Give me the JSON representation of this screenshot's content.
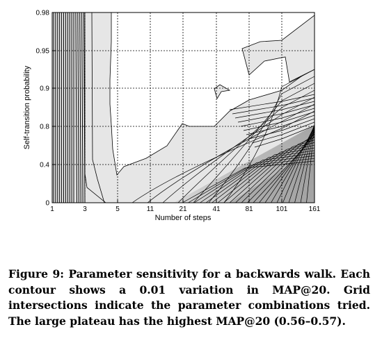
{
  "chart_data": {
    "type": "contour",
    "xlabel": "Number of steps",
    "ylabel": "Self-transition probability",
    "x_ticks": [
      "1",
      "3",
      "5",
      "11",
      "21",
      "41",
      "81",
      "101",
      "161"
    ],
    "y_ticks": [
      "0",
      "0.4",
      "0.8",
      "0.9",
      "0.95",
      "0.98"
    ],
    "grid": true,
    "colors": {
      "plateau": "#ffffff",
      "light": "#e6e6e6",
      "medium": "#b4b4b4",
      "dark": "#7a7a7a",
      "line": "#000000",
      "grid": "#000000"
    }
  },
  "caption": {
    "label": "Figure 9:",
    "text": "Parameter sensitivity for a backwards walk. Each contour shows a 0.01 variation in MAP@20. Grid intersections indicate the parameter combinations tried. The large plateau has the highest MAP@20 (0.56–0.57)."
  }
}
